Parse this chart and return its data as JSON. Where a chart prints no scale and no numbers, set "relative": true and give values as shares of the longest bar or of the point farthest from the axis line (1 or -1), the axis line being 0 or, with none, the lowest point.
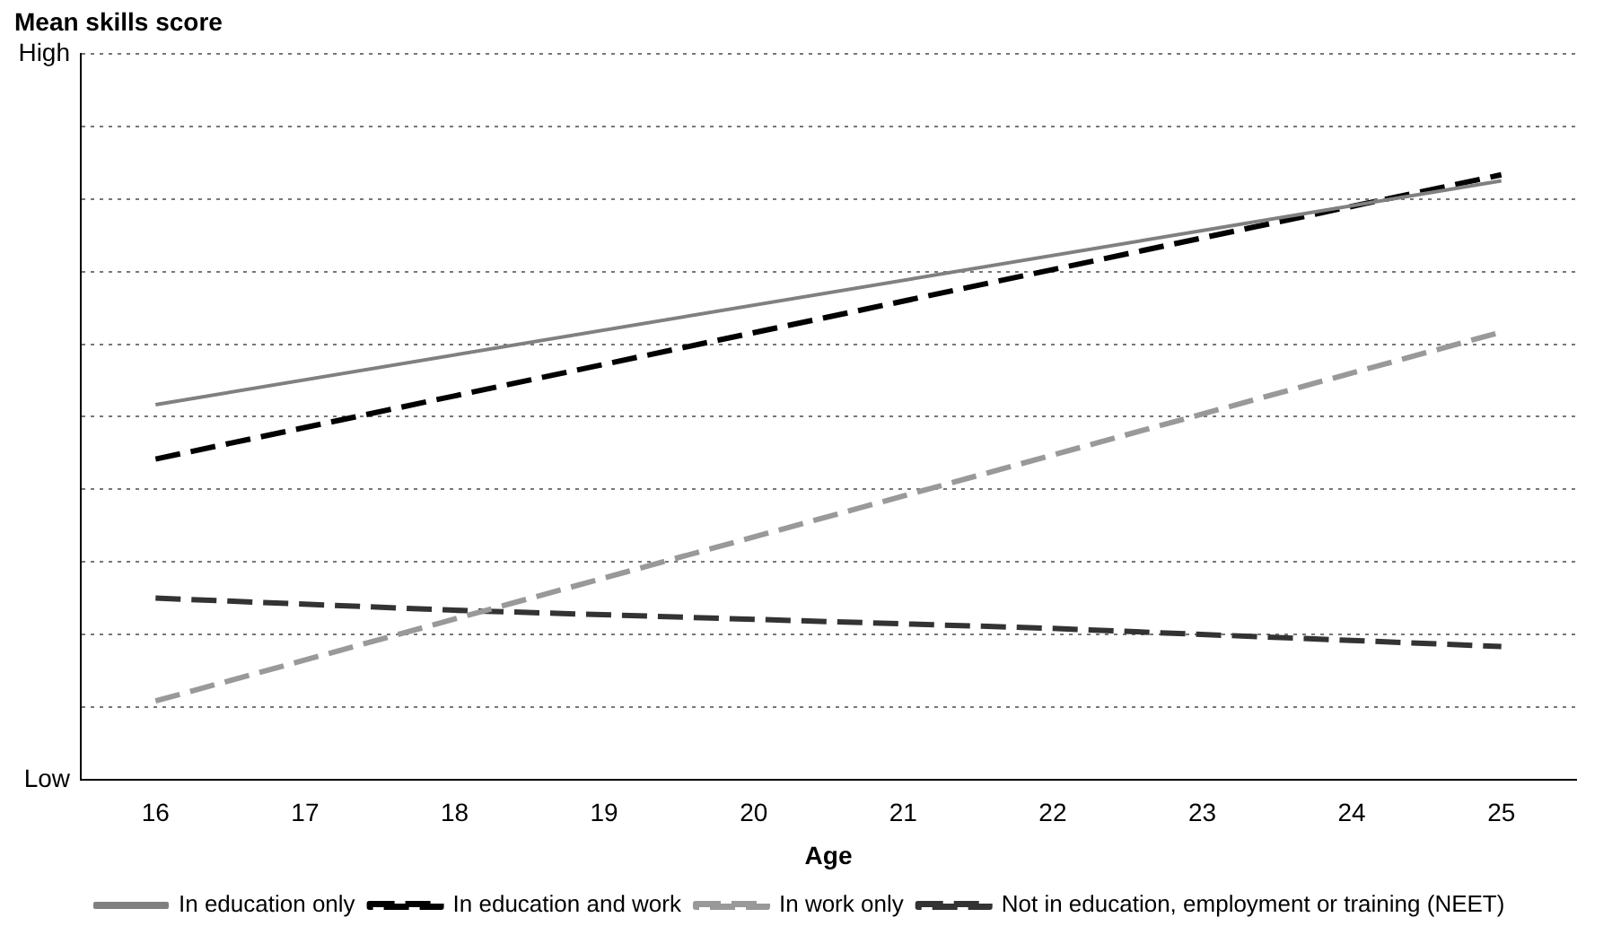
{
  "chart_data": {
    "type": "line",
    "title": "Mean skills score",
    "xlabel": "Age",
    "relative": true,
    "annotations": [
      "High",
      "Low"
    ],
    "xlim": [
      15.5,
      25.5
    ],
    "xticks": [
      16,
      17,
      18,
      19,
      20,
      21,
      22,
      23,
      24,
      25
    ],
    "grid": "y",
    "legend": "bottom",
    "marker": "none",
    "series": [
      {
        "name": "In education only",
        "color": "#808080",
        "line_style": "solid",
        "x": [
          16,
          25
        ],
        "values": [
          0.62,
          0.99
        ]
      },
      {
        "name": "In education and work",
        "color": "#000000",
        "line_style": "dashed",
        "x": [
          16,
          25
        ],
        "values": [
          0.53,
          1
        ]
      },
      {
        "name": "In work only",
        "color": "#999999",
        "line_style": "dashed",
        "x": [
          16,
          25
        ],
        "values": [
          0.13,
          0.74
        ]
      },
      {
        "name": "Not in education, employment or training (NEET)",
        "color": "#333333",
        "line_style": "dashed",
        "x": [
          16,
          18,
          22,
          25
        ],
        "values": [
          0.3,
          0.28,
          0.25,
          0.22
        ]
      }
    ]
  }
}
